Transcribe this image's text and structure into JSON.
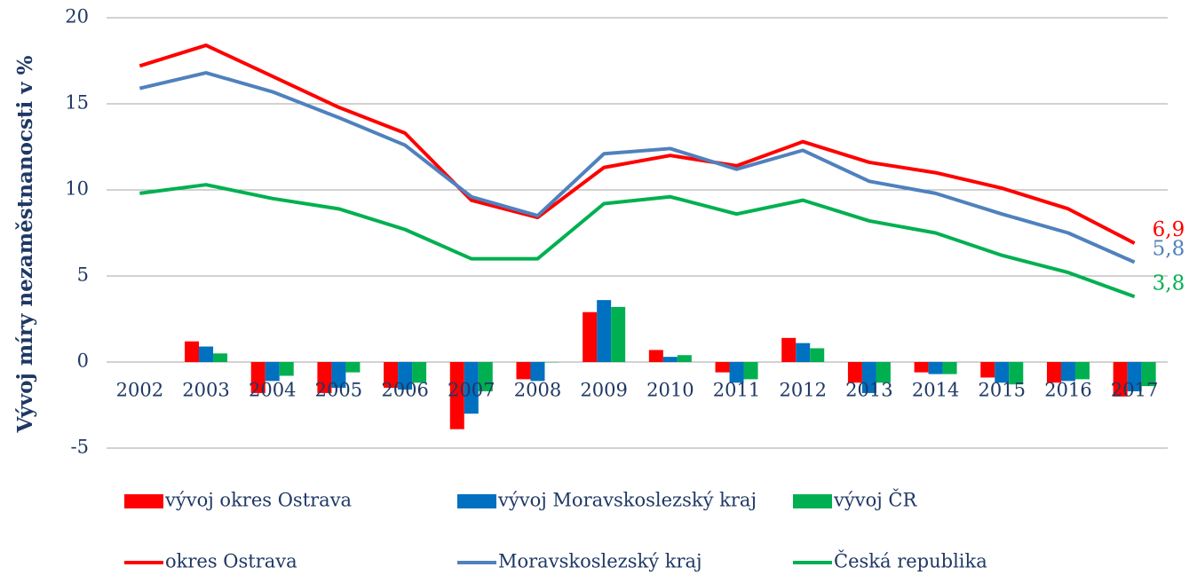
{
  "chart_data": {
    "type": "bar",
    "y_label": "Vývoj míry nezaměstnanocsti v %",
    "categories": [
      "2002",
      "2003",
      "2004",
      "2005",
      "2006",
      "2007",
      "2008",
      "2009",
      "2010",
      "2011",
      "2012",
      "2013",
      "2014",
      "2015",
      "2016",
      "2017"
    ],
    "ylim": [
      -5,
      20
    ],
    "yticks": [
      -5,
      0,
      5,
      10,
      15,
      20
    ],
    "grid": true,
    "series": [
      {
        "name": "vývoj okres Ostrava",
        "type": "bar",
        "color": "#ff0000",
        "values": [
          null,
          1.2,
          -1.8,
          -1.8,
          -1.5,
          -3.9,
          -1.0,
          2.9,
          0.7,
          -0.6,
          1.4,
          -1.2,
          -0.6,
          -0.9,
          -1.2,
          -2.0
        ]
      },
      {
        "name": "vývoj Moravskoslezský kraj",
        "type": "bar",
        "color": "#0070c0",
        "values": [
          null,
          0.9,
          -1.1,
          -1.5,
          -1.6,
          -3.0,
          -1.1,
          3.6,
          0.3,
          -1.2,
          1.1,
          -1.8,
          -0.7,
          -1.2,
          -1.1,
          -1.7
        ]
      },
      {
        "name": "vývoj ČR",
        "type": "bar",
        "color": "#00b050",
        "values": [
          null,
          0.5,
          -0.8,
          -0.6,
          -1.2,
          -1.7,
          0.0,
          3.2,
          0.4,
          -1.0,
          0.8,
          -1.2,
          -0.7,
          -1.3,
          -1.0,
          -1.4
        ]
      },
      {
        "name": "okres Ostrava",
        "type": "line",
        "color": "#ff0000",
        "values": [
          17.2,
          18.4,
          16.6,
          14.8,
          13.3,
          9.4,
          8.4,
          11.3,
          12.0,
          11.4,
          12.8,
          11.6,
          11.0,
          10.1,
          8.9,
          6.9
        ],
        "value_labels": [
          null,
          null,
          null,
          null,
          null,
          null,
          null,
          null,
          null,
          null,
          null,
          null,
          null,
          null,
          null,
          "6,9"
        ]
      },
      {
        "name": "Moravskoslezský kraj",
        "type": "line",
        "color": "#4f81bd",
        "values": [
          15.9,
          16.8,
          15.7,
          14.2,
          12.6,
          9.6,
          8.5,
          12.1,
          12.4,
          11.2,
          12.3,
          10.5,
          9.8,
          8.6,
          7.5,
          5.8
        ],
        "value_labels": [
          null,
          null,
          null,
          null,
          null,
          null,
          null,
          null,
          null,
          null,
          null,
          null,
          null,
          null,
          null,
          "5,8"
        ]
      },
      {
        "name": "Česká republika",
        "type": "line",
        "color": "#00b050",
        "values": [
          9.8,
          10.3,
          9.5,
          8.9,
          7.7,
          6.0,
          6.0,
          9.2,
          9.6,
          8.6,
          9.4,
          8.2,
          7.5,
          6.2,
          5.2,
          3.8
        ],
        "value_labels": [
          null,
          null,
          null,
          null,
          null,
          null,
          null,
          null,
          null,
          null,
          null,
          null,
          null,
          null,
          null,
          "3,8"
        ]
      }
    ]
  }
}
